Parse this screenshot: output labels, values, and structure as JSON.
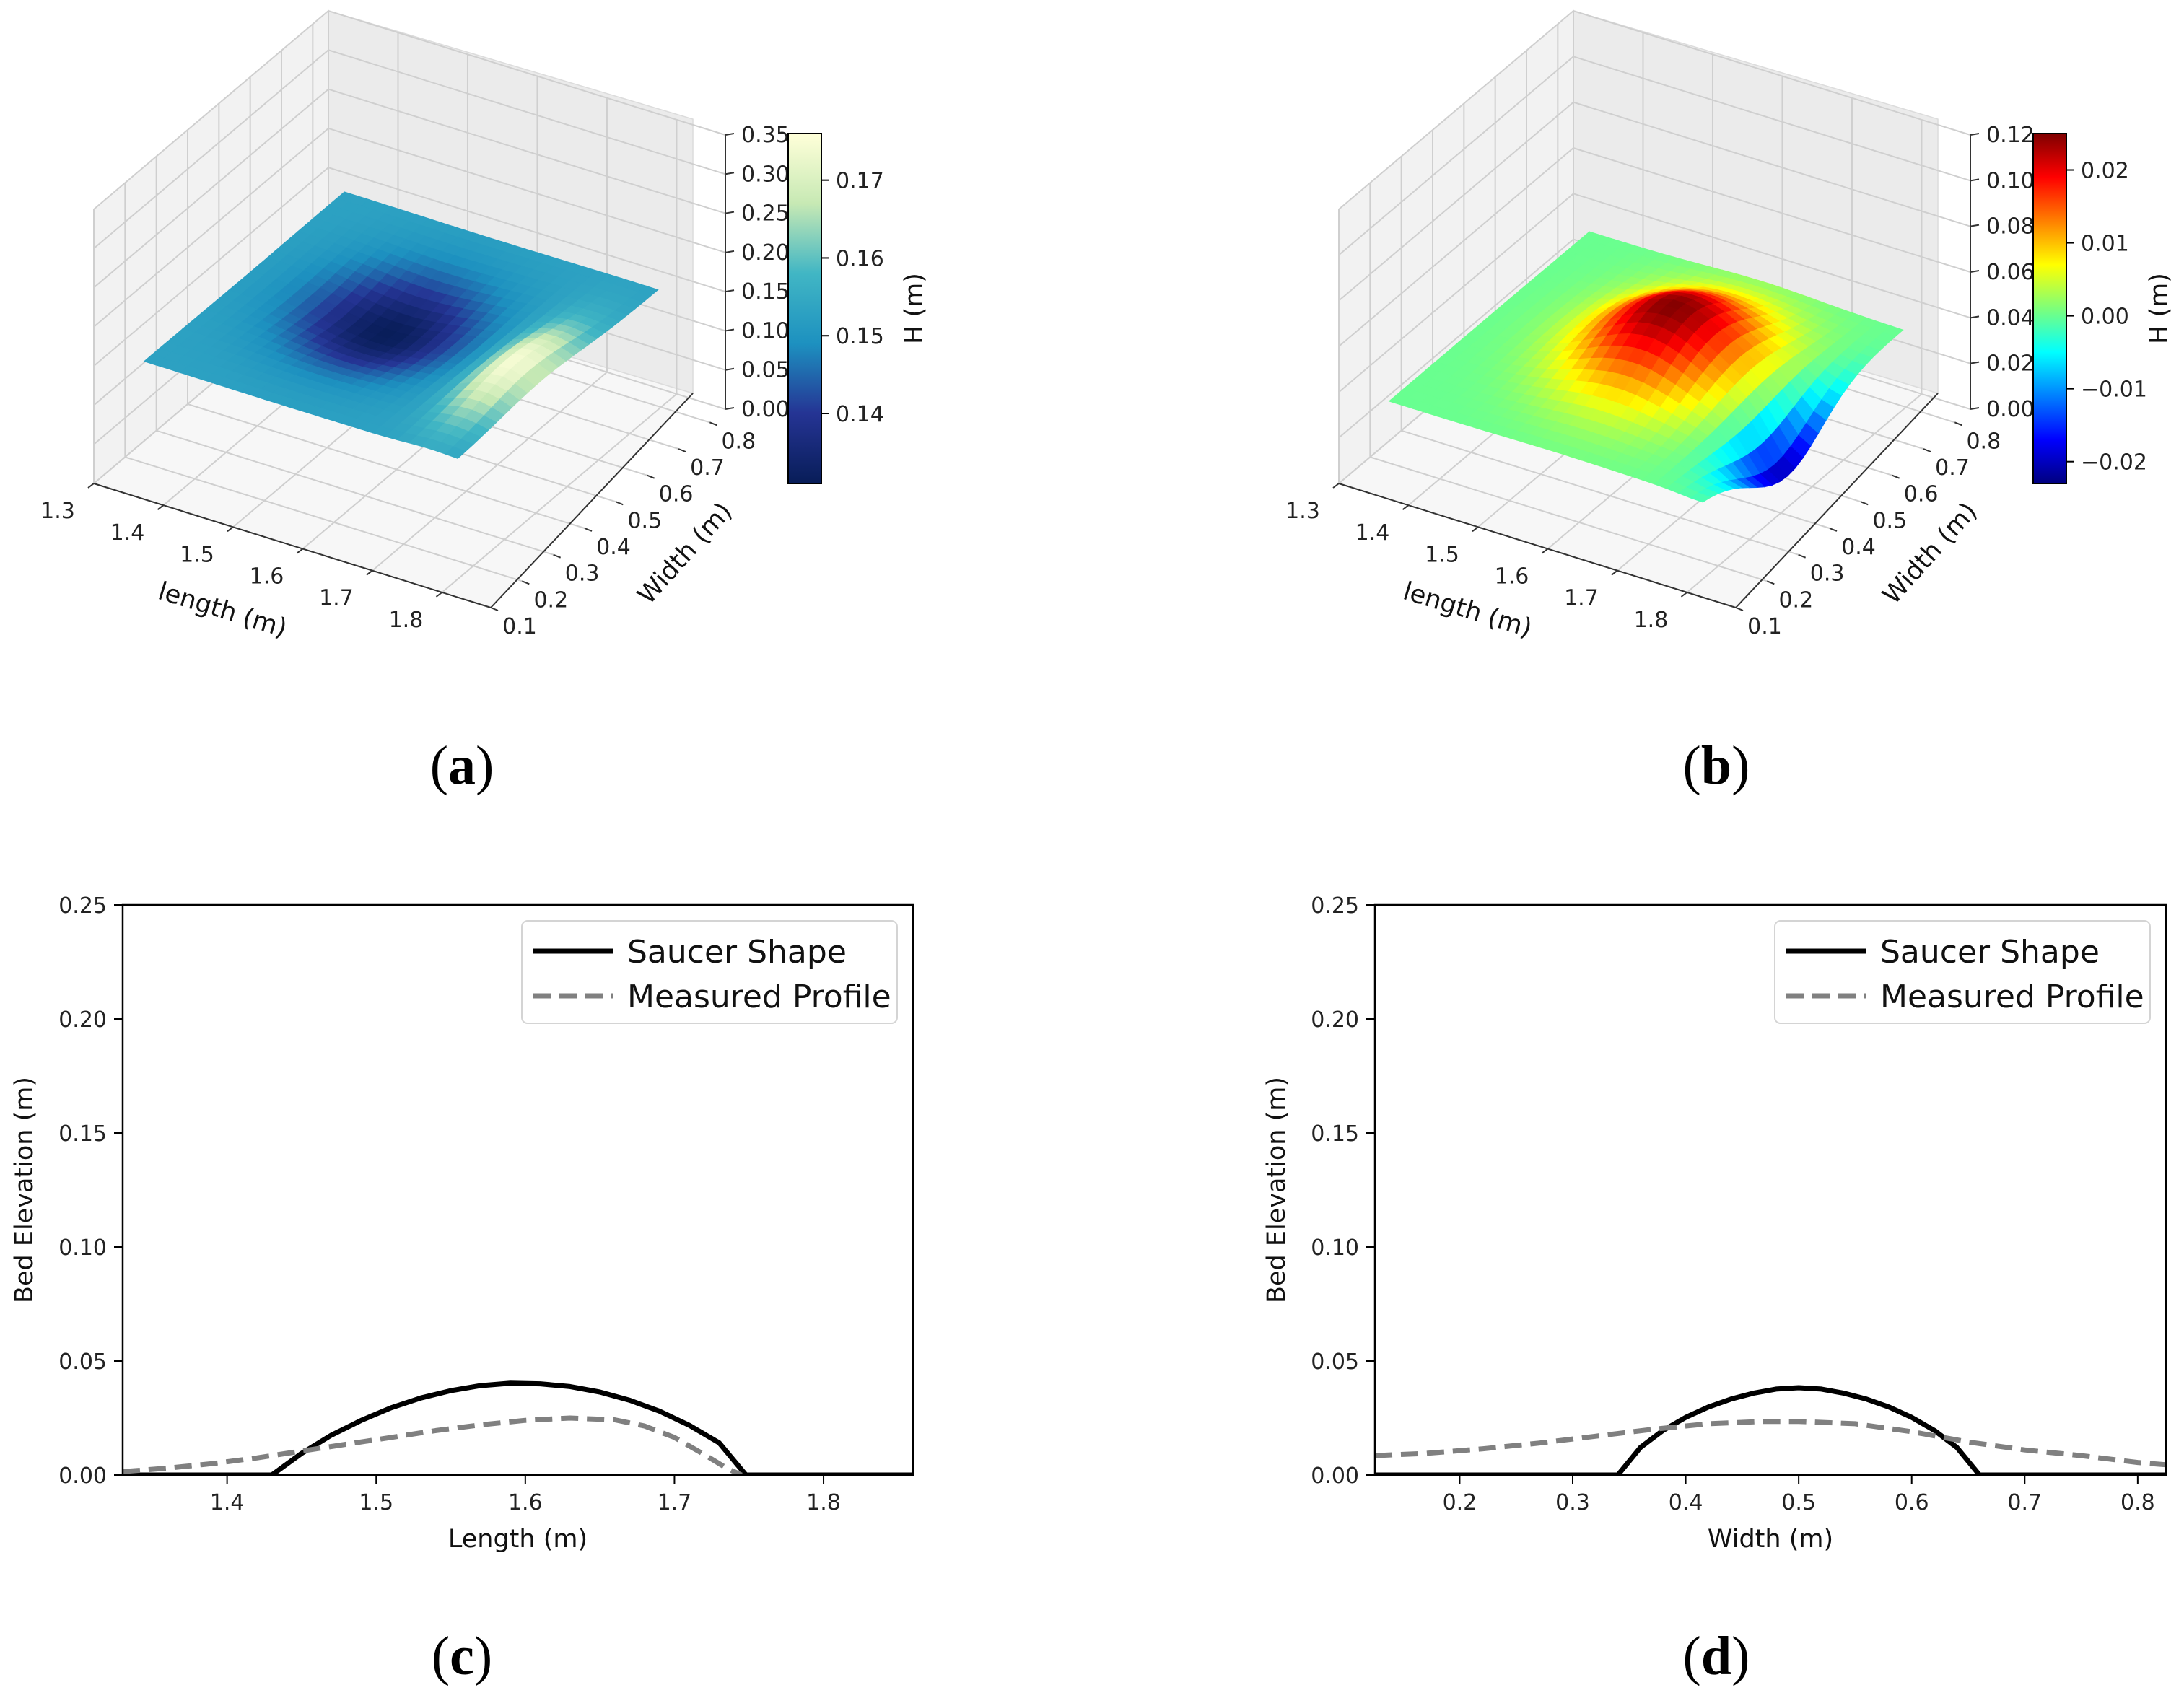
{
  "panel_labels": {
    "a": "a",
    "b": "b",
    "c": "c",
    "d": "d"
  },
  "chart_data": [
    {
      "id": "a",
      "type": "surface3d",
      "xlabel": "length (m)",
      "ylabel": "Width (m)",
      "xticks": [
        "1.3",
        "1.4",
        "1.5",
        "1.6",
        "1.7",
        "1.8"
      ],
      "yticks": [
        "0.1",
        "0.2",
        "0.3",
        "0.4",
        "0.5",
        "0.6",
        "0.7",
        "0.8"
      ],
      "zticks": [
        "0.00",
        "0.05",
        "0.10",
        "0.15",
        "0.20",
        "0.25",
        "0.30",
        "0.35"
      ],
      "xlim": [
        1.3,
        1.87
      ],
      "ylim": [
        0.1,
        0.85
      ],
      "zlim": [
        0.0,
        0.35
      ],
      "colorbar": {
        "label": "H (m)",
        "ticks": [
          "0.14",
          "0.15",
          "0.16",
          "0.17"
        ],
        "range": [
          0.131,
          0.176
        ],
        "colormap": "YlGnBu_r"
      },
      "surface": {
        "base": 0.153,
        "dip_center": [
          1.55,
          0.48
        ],
        "dip_depth": 0.022,
        "crest_center": [
          1.76,
          0.42
        ],
        "crest_height": 0.023
      }
    },
    {
      "id": "b",
      "type": "surface3d",
      "xlabel": "length (m)",
      "ylabel": "Width (m)",
      "xticks": [
        "1.3",
        "1.4",
        "1.5",
        "1.6",
        "1.7",
        "1.8"
      ],
      "yticks": [
        "0.1",
        "0.2",
        "0.3",
        "0.4",
        "0.5",
        "0.6",
        "0.7",
        "0.8"
      ],
      "zticks": [
        "0.00",
        "0.02",
        "0.04",
        "0.06",
        "0.08",
        "0.10",
        "0.12"
      ],
      "xlim": [
        1.3,
        1.87
      ],
      "ylim": [
        0.1,
        0.85
      ],
      "zlim": [
        0.0,
        0.12
      ],
      "colorbar": {
        "label": "H (m)",
        "ticks": [
          "0.02",
          "0.01",
          "0.00",
          "−0.01",
          "−0.02"
        ],
        "range": [
          -0.023,
          0.025
        ],
        "colormap": "jet"
      },
      "surface": {
        "base": 0.0,
        "mound_center": [
          1.6,
          0.5
        ],
        "mound_height": 0.025,
        "scour_center": [
          1.8,
          0.42
        ],
        "scour_depth": -0.022
      }
    },
    {
      "id": "c",
      "type": "line",
      "xlabel": "Length (m)",
      "ylabel": "Bed Elevation (m)",
      "xlim": [
        1.33,
        1.86
      ],
      "ylim": [
        0.0,
        0.25
      ],
      "xticks": [
        1.4,
        1.5,
        1.6,
        1.7,
        1.8
      ],
      "yticks": [
        0.0,
        0.05,
        0.1,
        0.15,
        0.2,
        0.25
      ],
      "xtick_labels": [
        "1.4",
        "1.5",
        "1.6",
        "1.7",
        "1.8"
      ],
      "ytick_labels": [
        "0.00",
        "0.05",
        "0.10",
        "0.15",
        "0.20",
        "0.25"
      ],
      "legend_position": "top-right",
      "series": [
        {
          "name": "Saucer Shape",
          "color": "#000000",
          "style": "solid",
          "x": [
            1.33,
            1.43,
            1.45,
            1.47,
            1.49,
            1.51,
            1.53,
            1.55,
            1.57,
            1.59,
            1.61,
            1.63,
            1.65,
            1.67,
            1.69,
            1.71,
            1.73,
            1.748,
            1.76,
            1.86
          ],
          "y": [
            0.0,
            0.0,
            0.0095,
            0.0175,
            0.024,
            0.0295,
            0.0338,
            0.037,
            0.0392,
            0.0403,
            0.04,
            0.0388,
            0.0364,
            0.0328,
            0.028,
            0.0218,
            0.0141,
            0.0,
            0.0,
            0.0
          ]
        },
        {
          "name": "Measured Profile",
          "color": "#808080",
          "style": "dashed",
          "x": [
            1.33,
            1.36,
            1.39,
            1.42,
            1.45,
            1.48,
            1.51,
            1.54,
            1.57,
            1.6,
            1.63,
            1.66,
            1.68,
            1.7,
            1.72,
            1.735,
            1.745
          ],
          "y": [
            0.0015,
            0.003,
            0.005,
            0.0075,
            0.0105,
            0.0135,
            0.0165,
            0.0195,
            0.022,
            0.024,
            0.025,
            0.0242,
            0.0215,
            0.0165,
            0.009,
            0.003,
            0.0
          ]
        }
      ]
    },
    {
      "id": "d",
      "type": "line",
      "xlabel": "Width (m)",
      "ylabel": "Bed Elevation (m)",
      "xlim": [
        0.125,
        0.825
      ],
      "ylim": [
        0.0,
        0.25
      ],
      "xticks": [
        0.2,
        0.3,
        0.4,
        0.5,
        0.6,
        0.7,
        0.8
      ],
      "yticks": [
        0.0,
        0.05,
        0.1,
        0.15,
        0.2,
        0.25
      ],
      "xtick_labels": [
        "0.2",
        "0.3",
        "0.4",
        "0.5",
        "0.6",
        "0.7",
        "0.8"
      ],
      "ytick_labels": [
        "0.00",
        "0.05",
        "0.10",
        "0.15",
        "0.20",
        "0.25"
      ],
      "legend_position": "top-right",
      "series": [
        {
          "name": "Saucer Shape",
          "color": "#000000",
          "style": "solid",
          "x": [
            0.125,
            0.34,
            0.36,
            0.38,
            0.4,
            0.42,
            0.44,
            0.46,
            0.48,
            0.5,
            0.52,
            0.54,
            0.56,
            0.58,
            0.6,
            0.62,
            0.64,
            0.66,
            0.825
          ],
          "y": [
            0.0,
            0.0,
            0.0121,
            0.0196,
            0.0253,
            0.0298,
            0.0333,
            0.0359,
            0.0377,
            0.0383,
            0.0377,
            0.0359,
            0.0333,
            0.0298,
            0.0253,
            0.0196,
            0.0121,
            0.0,
            0.0
          ]
        },
        {
          "name": "Measured Profile",
          "color": "#808080",
          "style": "dashed",
          "x": [
            0.125,
            0.17,
            0.22,
            0.27,
            0.32,
            0.37,
            0.42,
            0.47,
            0.5,
            0.55,
            0.6,
            0.65,
            0.7,
            0.75,
            0.8,
            0.825
          ],
          "y": [
            0.0085,
            0.0095,
            0.0115,
            0.014,
            0.017,
            0.02,
            0.0225,
            0.0235,
            0.0235,
            0.0225,
            0.019,
            0.0145,
            0.011,
            0.0085,
            0.0055,
            0.0045
          ]
        }
      ]
    }
  ]
}
